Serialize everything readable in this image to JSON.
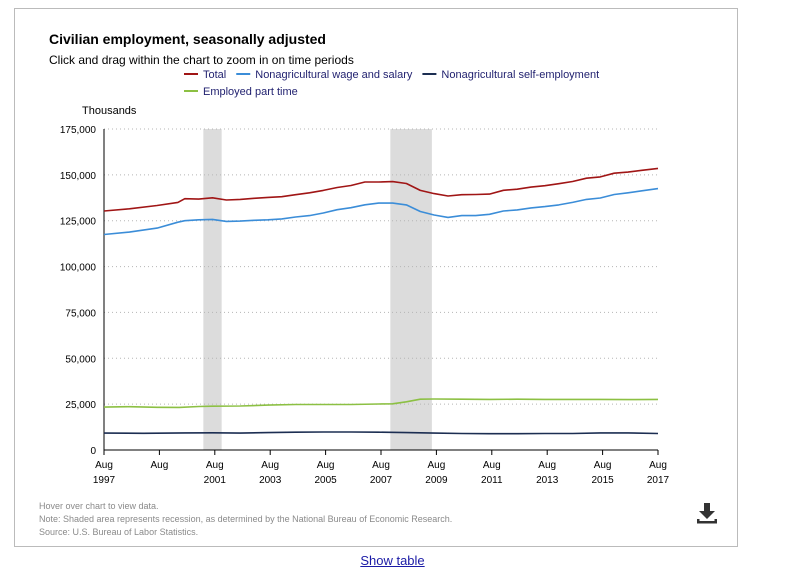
{
  "title": "Civilian employment, seasonally adjusted",
  "subtitle": "Click and drag within the chart to zoom in on time periods",
  "notes": {
    "hover": "Hover over chart to view data.",
    "recession": "Note: Shaded area represents recession, as determined by the National Bureau of Economic Research.",
    "source": "Source: U.S. Bureau of Labor Statistics."
  },
  "show_table_label": "Show table",
  "download_icon": "download-icon",
  "chart_data": {
    "type": "line",
    "ylabel": "Thousands",
    "ylim": [
      0,
      175000
    ],
    "yticks": [
      "0",
      "25,000",
      "50,000",
      "75,000",
      "100,000",
      "125,000",
      "150,000",
      "175,000"
    ],
    "ytick_values": [
      0,
      25000,
      50000,
      75000,
      100000,
      125000,
      150000,
      175000
    ],
    "xlim": [
      1997.583,
      2017.583
    ],
    "xticks": [
      {
        "x": 1997.583,
        "month": "Aug",
        "year": "1997"
      },
      {
        "x": 1999.583,
        "month": "Aug",
        "year": ""
      },
      {
        "x": 2001.583,
        "month": "Aug",
        "year": "2001"
      },
      {
        "x": 2003.583,
        "month": "Aug",
        "year": "2003"
      },
      {
        "x": 2005.583,
        "month": "Aug",
        "year": "2005"
      },
      {
        "x": 2007.583,
        "month": "Aug",
        "year": "2007"
      },
      {
        "x": 2009.583,
        "month": "Aug",
        "year": "2009"
      },
      {
        "x": 2011.583,
        "month": "Aug",
        "year": "2011"
      },
      {
        "x": 2013.583,
        "month": "Aug",
        "year": "2013"
      },
      {
        "x": 2015.583,
        "month": "Aug",
        "year": "2015"
      },
      {
        "x": 2017.583,
        "month": "Aug",
        "year": "2017"
      }
    ],
    "grid": true,
    "legend_position": "top",
    "recessions": [
      [
        2001.17,
        2001.83
      ],
      [
        2007.92,
        2009.42
      ]
    ],
    "series": [
      {
        "name": "Total",
        "color": "#a01515",
        "points": [
          [
            1997.583,
            130300
          ],
          [
            1998.5,
            131500
          ],
          [
            1999.5,
            133300
          ],
          [
            2000.25,
            135000
          ],
          [
            2000.5,
            137000
          ],
          [
            2001.0,
            136800
          ],
          [
            2001.5,
            137500
          ],
          [
            2002.0,
            136300
          ],
          [
            2002.5,
            136600
          ],
          [
            2003.0,
            137200
          ],
          [
            2003.5,
            137700
          ],
          [
            2004.0,
            138100
          ],
          [
            2004.5,
            139200
          ],
          [
            2005.0,
            140200
          ],
          [
            2005.5,
            141500
          ],
          [
            2006.0,
            143100
          ],
          [
            2006.5,
            144200
          ],
          [
            2007.0,
            146100
          ],
          [
            2007.5,
            146100
          ],
          [
            2008.0,
            146300
          ],
          [
            2008.5,
            145300
          ],
          [
            2009.0,
            141500
          ],
          [
            2009.5,
            139800
          ],
          [
            2010.0,
            138500
          ],
          [
            2010.5,
            139200
          ],
          [
            2011.0,
            139300
          ],
          [
            2011.5,
            139500
          ],
          [
            2012.0,
            141600
          ],
          [
            2012.5,
            142200
          ],
          [
            2013.0,
            143300
          ],
          [
            2013.5,
            144100
          ],
          [
            2014.0,
            145200
          ],
          [
            2014.5,
            146400
          ],
          [
            2015.0,
            148200
          ],
          [
            2015.5,
            148900
          ],
          [
            2016.0,
            150900
          ],
          [
            2016.5,
            151500
          ],
          [
            2017.0,
            152500
          ],
          [
            2017.583,
            153500
          ]
        ]
      },
      {
        "name": "Nonagricultural wage and salary",
        "color": "#3b8dd8",
        "points": [
          [
            1997.583,
            117500
          ],
          [
            1998.5,
            118800
          ],
          [
            1999.5,
            121000
          ],
          [
            2000.25,
            124200
          ],
          [
            2000.5,
            125000
          ],
          [
            2001.0,
            125500
          ],
          [
            2001.5,
            125700
          ],
          [
            2002.0,
            124600
          ],
          [
            2002.5,
            124800
          ],
          [
            2003.0,
            125200
          ],
          [
            2003.5,
            125500
          ],
          [
            2004.0,
            126000
          ],
          [
            2004.5,
            127000
          ],
          [
            2005.0,
            127800
          ],
          [
            2005.5,
            129200
          ],
          [
            2006.0,
            131000
          ],
          [
            2006.5,
            132100
          ],
          [
            2007.0,
            133700
          ],
          [
            2007.5,
            134600
          ],
          [
            2008.0,
            134600
          ],
          [
            2008.5,
            133600
          ],
          [
            2009.0,
            130000
          ],
          [
            2009.5,
            128100
          ],
          [
            2010.0,
            126800
          ],
          [
            2010.5,
            127800
          ],
          [
            2011.0,
            127800
          ],
          [
            2011.5,
            128500
          ],
          [
            2012.0,
            130300
          ],
          [
            2012.5,
            130900
          ],
          [
            2013.0,
            132000
          ],
          [
            2013.5,
            132700
          ],
          [
            2014.0,
            133600
          ],
          [
            2014.5,
            135000
          ],
          [
            2015.0,
            136600
          ],
          [
            2015.5,
            137400
          ],
          [
            2016.0,
            139300
          ],
          [
            2016.5,
            140200
          ],
          [
            2017.0,
            141300
          ],
          [
            2017.583,
            142500
          ]
        ]
      },
      {
        "name": "Nonagricultural self-employment",
        "color": "#1c2e52",
        "points": [
          [
            1997.583,
            9200
          ],
          [
            1999.0,
            9100
          ],
          [
            2000.5,
            9300
          ],
          [
            2001.5,
            9400
          ],
          [
            2002.5,
            9200
          ],
          [
            2003.5,
            9500
          ],
          [
            2004.5,
            9700
          ],
          [
            2005.5,
            9800
          ],
          [
            2006.5,
            9800
          ],
          [
            2007.5,
            9700
          ],
          [
            2008.5,
            9500
          ],
          [
            2009.5,
            9200
          ],
          [
            2010.5,
            9000
          ],
          [
            2011.5,
            8900
          ],
          [
            2012.5,
            8900
          ],
          [
            2013.5,
            9000
          ],
          [
            2014.5,
            9000
          ],
          [
            2015.5,
            9300
          ],
          [
            2016.5,
            9300
          ],
          [
            2017.583,
            9000
          ]
        ]
      },
      {
        "name": "Employed part time",
        "color": "#8cc043",
        "points": [
          [
            1997.583,
            23400
          ],
          [
            1998.5,
            23600
          ],
          [
            1999.5,
            23300
          ],
          [
            2000.3,
            23200
          ],
          [
            2001.0,
            23700
          ],
          [
            2001.5,
            23900
          ],
          [
            2002.5,
            24000
          ],
          [
            2003.5,
            24500
          ],
          [
            2004.5,
            24800
          ],
          [
            2005.5,
            24800
          ],
          [
            2006.5,
            24800
          ],
          [
            2007.5,
            25100
          ],
          [
            2008.0,
            25200
          ],
          [
            2008.5,
            26300
          ],
          [
            2009.0,
            27700
          ],
          [
            2009.5,
            27800
          ],
          [
            2010.5,
            27700
          ],
          [
            2011.5,
            27600
          ],
          [
            2012.5,
            27700
          ],
          [
            2013.5,
            27600
          ],
          [
            2014.5,
            27600
          ],
          [
            2015.5,
            27600
          ],
          [
            2016.5,
            27500
          ],
          [
            2017.583,
            27600
          ]
        ]
      }
    ]
  }
}
